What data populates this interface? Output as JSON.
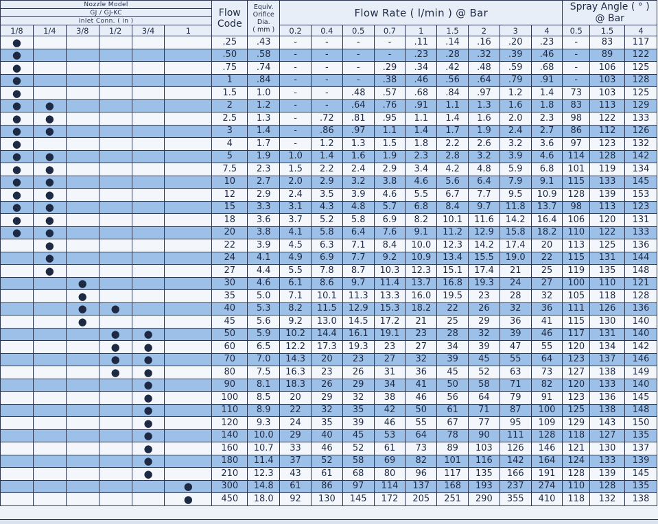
{
  "header": {
    "nozzle_model": "Nozzle Model",
    "model_names": "GJ / GJ-KC",
    "inlet_conn": "Inlet Conn. ( in )",
    "inlet_sizes": [
      "1/8",
      "1/4",
      "3/8",
      "1/2",
      "3/4",
      "1"
    ],
    "flow_code": [
      "Flow",
      "Code"
    ],
    "orifice": [
      "Equiv.",
      "Orifice",
      "Dia.",
      "( mm )"
    ],
    "flow_rate": "Flow Rate ( l/min ) @ Bar",
    "pressures": [
      "0.2",
      "0.4",
      "0.5",
      "0.7",
      "1",
      "1.5",
      "2",
      "3",
      "4"
    ],
    "spray_angle": [
      "Spray Angle ( ° )",
      "@ Bar"
    ],
    "angle_pressures": [
      "0.5",
      "1.5",
      "4"
    ]
  },
  "dot_symbol": "●",
  "rows": [
    {
      "conn": [
        "●",
        "",
        "",
        "",
        "",
        ""
      ],
      "code": ".25",
      "orifice": ".43",
      "flow": [
        "-",
        "-",
        "-",
        "-",
        ".11",
        ".14",
        ".16",
        ".20",
        ".23"
      ],
      "angle": [
        "-",
        "83",
        "117"
      ]
    },
    {
      "conn": [
        "●",
        "",
        "",
        "",
        "",
        ""
      ],
      "code": ".50",
      "orifice": ".58",
      "flow": [
        "-",
        "-",
        "-",
        "-",
        ".23",
        ".28",
        ".32",
        ".39",
        ".46"
      ],
      "angle": [
        "-",
        "89",
        "122"
      ]
    },
    {
      "conn": [
        "●",
        "",
        "",
        "",
        "",
        ""
      ],
      "code": ".75",
      "orifice": ".74",
      "flow": [
        "-",
        "-",
        "-",
        ".29",
        ".34",
        ".42",
        ".48",
        ".59",
        ".68"
      ],
      "angle": [
        "-",
        "106",
        "125"
      ]
    },
    {
      "conn": [
        "●",
        "",
        "",
        "",
        "",
        ""
      ],
      "code": "1",
      "orifice": ".84",
      "flow": [
        "-",
        "-",
        "-",
        ".38",
        ".46",
        ".56",
        ".64",
        ".79",
        ".91"
      ],
      "angle": [
        "-",
        "103",
        "128"
      ]
    },
    {
      "conn": [
        "●",
        "",
        "",
        "",
        "",
        ""
      ],
      "code": "1.5",
      "orifice": "1.0",
      "flow": [
        "-",
        "-",
        ".48",
        ".57",
        ".68",
        ".84",
        ".97",
        "1.2",
        "1.4"
      ],
      "angle": [
        "73",
        "103",
        "125"
      ]
    },
    {
      "conn": [
        "●",
        "●",
        "",
        "",
        "",
        ""
      ],
      "code": "2",
      "orifice": "1.2",
      "flow": [
        "-",
        "-",
        ".64",
        ".76",
        ".91",
        "1.1",
        "1.3",
        "1.6",
        "1.8"
      ],
      "angle": [
        "83",
        "113",
        "129"
      ]
    },
    {
      "conn": [
        "●",
        "●",
        "",
        "",
        "",
        ""
      ],
      "code": "2.5",
      "orifice": "1.3",
      "flow": [
        "-",
        ".72",
        ".81",
        ".95",
        "1.1",
        "1.4",
        "1.6",
        "2.0",
        "2.3"
      ],
      "angle": [
        "98",
        "122",
        "133"
      ]
    },
    {
      "conn": [
        "●",
        "●",
        "",
        "",
        "",
        ""
      ],
      "code": "3",
      "orifice": "1.4",
      "flow": [
        "-",
        ".86",
        ".97",
        "1.1",
        "1.4",
        "1.7",
        "1.9",
        "2.4",
        "2.7"
      ],
      "angle": [
        "86",
        "112",
        "126"
      ]
    },
    {
      "conn": [
        "●",
        "",
        "",
        "",
        "",
        ""
      ],
      "code": "4",
      "orifice": "1.7",
      "flow": [
        "-",
        "1.2",
        "1.3",
        "1.5",
        "1.8",
        "2.2",
        "2.6",
        "3.2",
        "3.6"
      ],
      "angle": [
        "97",
        "123",
        "132"
      ]
    },
    {
      "conn": [
        "●",
        "●",
        "",
        "",
        "",
        ""
      ],
      "code": "5",
      "orifice": "1.9",
      "flow": [
        "1.0",
        "1.4",
        "1.6",
        "1.9",
        "2.3",
        "2.8",
        "3.2",
        "3.9",
        "4.6"
      ],
      "angle": [
        "114",
        "128",
        "142"
      ]
    },
    {
      "conn": [
        "●",
        "●",
        "",
        "",
        "",
        ""
      ],
      "code": "7.5",
      "orifice": "2.3",
      "flow": [
        "1.5",
        "2.2",
        "2.4",
        "2.9",
        "3.4",
        "4.2",
        "4.8",
        "5.9",
        "6.8"
      ],
      "angle": [
        "101",
        "119",
        "134"
      ]
    },
    {
      "conn": [
        "●",
        "●",
        "",
        "",
        "",
        ""
      ],
      "code": "10",
      "orifice": "2.7",
      "flow": [
        "2.0",
        "2.9",
        "3.2",
        "3.8",
        "4.6",
        "5.6",
        "6.4",
        "7.9",
        "9.1"
      ],
      "angle": [
        "115",
        "133",
        "145"
      ]
    },
    {
      "conn": [
        "●",
        "●",
        "",
        "",
        "",
        ""
      ],
      "code": "12",
      "orifice": "2.9",
      "flow": [
        "2.4",
        "3.5",
        "3.9",
        "4.6",
        "5.5",
        "6.7",
        "7.7",
        "9.5",
        "10.9"
      ],
      "angle": [
        "128",
        "139",
        "153"
      ]
    },
    {
      "conn": [
        "●",
        "●",
        "",
        "",
        "",
        ""
      ],
      "code": "15",
      "orifice": "3.3",
      "flow": [
        "3.1",
        "4.3",
        "4.8",
        "5.7",
        "6.8",
        "8.4",
        "9.7",
        "11.8",
        "13.7"
      ],
      "angle": [
        "98",
        "113",
        "123"
      ]
    },
    {
      "conn": [
        "●",
        "●",
        "",
        "",
        "",
        ""
      ],
      "code": "18",
      "orifice": "3.6",
      "flow": [
        "3.7",
        "5.2",
        "5.8",
        "6.9",
        "8.2",
        "10.1",
        "11.6",
        "14.2",
        "16.4"
      ],
      "angle": [
        "106",
        "120",
        "131"
      ]
    },
    {
      "conn": [
        "●",
        "●",
        "",
        "",
        "",
        ""
      ],
      "code": "20",
      "orifice": "3.8",
      "flow": [
        "4.1",
        "5.8",
        "6.4",
        "7.6",
        "9.1",
        "11.2",
        "12.9",
        "15.8",
        "18.2"
      ],
      "angle": [
        "110",
        "122",
        "133"
      ]
    },
    {
      "conn": [
        "",
        "●",
        "",
        "",
        "",
        ""
      ],
      "code": "22",
      "orifice": "3.9",
      "flow": [
        "4.5",
        "6.3",
        "7.1",
        "8.4",
        "10.0",
        "12.3",
        "14.2",
        "17.4",
        "20"
      ],
      "angle": [
        "113",
        "125",
        "136"
      ]
    },
    {
      "conn": [
        "",
        "●",
        "",
        "",
        "",
        ""
      ],
      "code": "24",
      "orifice": "4.1",
      "flow": [
        "4.9",
        "6.9",
        "7.7",
        "9.2",
        "10.9",
        "13.4",
        "15.5",
        "19.0",
        "22"
      ],
      "angle": [
        "115",
        "131",
        "144"
      ]
    },
    {
      "conn": [
        "",
        "●",
        "",
        "",
        "",
        ""
      ],
      "code": "27",
      "orifice": "4.4",
      "flow": [
        "5.5",
        "7.8",
        "8.7",
        "10.3",
        "12.3",
        "15.1",
        "17.4",
        "21",
        "25"
      ],
      "angle": [
        "119",
        "135",
        "148"
      ]
    },
    {
      "conn": [
        "",
        "",
        "●",
        "",
        "",
        ""
      ],
      "code": "30",
      "orifice": "4.6",
      "flow": [
        "6.1",
        "8.6",
        "9.7",
        "11.4",
        "13.7",
        "16.8",
        "19.3",
        "24",
        "27"
      ],
      "angle": [
        "100",
        "110",
        "121"
      ]
    },
    {
      "conn": [
        "",
        "",
        "●",
        "",
        "",
        ""
      ],
      "code": "35",
      "orifice": "5.0",
      "flow": [
        "7.1",
        "10.1",
        "11.3",
        "13.3",
        "16.0",
        "19.5",
        "23",
        "28",
        "32"
      ],
      "angle": [
        "105",
        "118",
        "128"
      ]
    },
    {
      "conn": [
        "",
        "",
        "●",
        "●",
        "",
        ""
      ],
      "code": "40",
      "orifice": "5.3",
      "flow": [
        "8.2",
        "11.5",
        "12.9",
        "15.3",
        "18.2",
        "22",
        "26",
        "32",
        "36"
      ],
      "angle": [
        "111",
        "126",
        "136"
      ]
    },
    {
      "conn": [
        "",
        "",
        "●",
        "",
        "",
        ""
      ],
      "code": "45",
      "orifice": "5.6",
      "flow": [
        "9.2",
        "13.0",
        "14.5",
        "17.2",
        "21",
        "25",
        "29",
        "36",
        "41"
      ],
      "angle": [
        "115",
        "130",
        "140"
      ]
    },
    {
      "conn": [
        "",
        "",
        "",
        "●",
        "●",
        ""
      ],
      "code": "50",
      "orifice": "5.9",
      "flow": [
        "10.2",
        "14.4",
        "16.1",
        "19.1",
        "23",
        "28",
        "32",
        "39",
        "46"
      ],
      "angle": [
        "117",
        "131",
        "140"
      ]
    },
    {
      "conn": [
        "",
        "",
        "",
        "●",
        "●",
        ""
      ],
      "code": "60",
      "orifice": "6.5",
      "flow": [
        "12.2",
        "17.3",
        "19.3",
        "23",
        "27",
        "34",
        "39",
        "47",
        "55"
      ],
      "angle": [
        "120",
        "134",
        "142"
      ]
    },
    {
      "conn": [
        "",
        "",
        "",
        "●",
        "●",
        ""
      ],
      "code": "70",
      "orifice": "7.0",
      "flow": [
        "14.3",
        "20",
        "23",
        "27",
        "32",
        "39",
        "45",
        "55",
        "64"
      ],
      "angle": [
        "123",
        "137",
        "146"
      ]
    },
    {
      "conn": [
        "",
        "",
        "",
        "●",
        "●",
        ""
      ],
      "code": "80",
      "orifice": "7.5",
      "flow": [
        "16.3",
        "23",
        "26",
        "31",
        "36",
        "45",
        "52",
        "63",
        "73"
      ],
      "angle": [
        "127",
        "138",
        "149"
      ]
    },
    {
      "conn": [
        "",
        "",
        "",
        "",
        "●",
        ""
      ],
      "code": "90",
      "orifice": "8.1",
      "flow": [
        "18.3",
        "26",
        "29",
        "34",
        "41",
        "50",
        "58",
        "71",
        "82"
      ],
      "angle": [
        "120",
        "133",
        "140"
      ]
    },
    {
      "conn": [
        "",
        "",
        "",
        "",
        "●",
        ""
      ],
      "code": "100",
      "orifice": "8.5",
      "flow": [
        "20",
        "29",
        "32",
        "38",
        "46",
        "56",
        "64",
        "79",
        "91"
      ],
      "angle": [
        "123",
        "136",
        "145"
      ]
    },
    {
      "conn": [
        "",
        "",
        "",
        "",
        "●",
        ""
      ],
      "code": "110",
      "orifice": "8.9",
      "flow": [
        "22",
        "32",
        "35",
        "42",
        "50",
        "61",
        "71",
        "87",
        "100"
      ],
      "angle": [
        "125",
        "138",
        "148"
      ]
    },
    {
      "conn": [
        "",
        "",
        "",
        "",
        "●",
        ""
      ],
      "code": "120",
      "orifice": "9.3",
      "flow": [
        "24",
        "35",
        "39",
        "46",
        "55",
        "67",
        "77",
        "95",
        "109"
      ],
      "angle": [
        "129",
        "143",
        "150"
      ]
    },
    {
      "conn": [
        "",
        "",
        "",
        "",
        "●",
        ""
      ],
      "code": "140",
      "orifice": "10.0",
      "flow": [
        "29",
        "40",
        "45",
        "53",
        "64",
        "78",
        "90",
        "111",
        "128"
      ],
      "angle": [
        "118",
        "127",
        "135"
      ]
    },
    {
      "conn": [
        "",
        "",
        "",
        "",
        "●",
        ""
      ],
      "code": "160",
      "orifice": "10.7",
      "flow": [
        "33",
        "46",
        "52",
        "61",
        "73",
        "89",
        "103",
        "126",
        "146"
      ],
      "angle": [
        "121",
        "130",
        "137"
      ]
    },
    {
      "conn": [
        "",
        "",
        "",
        "",
        "●",
        ""
      ],
      "code": "180",
      "orifice": "11.4",
      "flow": [
        "37",
        "52",
        "58",
        "69",
        "82",
        "101",
        "116",
        "142",
        "164"
      ],
      "angle": [
        "124",
        "133",
        "139"
      ]
    },
    {
      "conn": [
        "",
        "",
        "",
        "",
        "●",
        ""
      ],
      "code": "210",
      "orifice": "12.3",
      "flow": [
        "43",
        "61",
        "68",
        "80",
        "96",
        "117",
        "135",
        "166",
        "191"
      ],
      "angle": [
        "128",
        "139",
        "145"
      ]
    },
    {
      "conn": [
        "",
        "",
        "",
        "",
        "",
        "●"
      ],
      "code": "300",
      "orifice": "14.8",
      "flow": [
        "61",
        "86",
        "97",
        "114",
        "137",
        "168",
        "193",
        "237",
        "274"
      ],
      "angle": [
        "110",
        "128",
        "135"
      ]
    },
    {
      "conn": [
        "",
        "",
        "",
        "",
        "",
        "●"
      ],
      "code": "450",
      "orifice": "18.0",
      "flow": [
        "92",
        "130",
        "145",
        "172",
        "205",
        "251",
        "290",
        "355",
        "410"
      ],
      "angle": [
        "118",
        "132",
        "138"
      ]
    }
  ]
}
